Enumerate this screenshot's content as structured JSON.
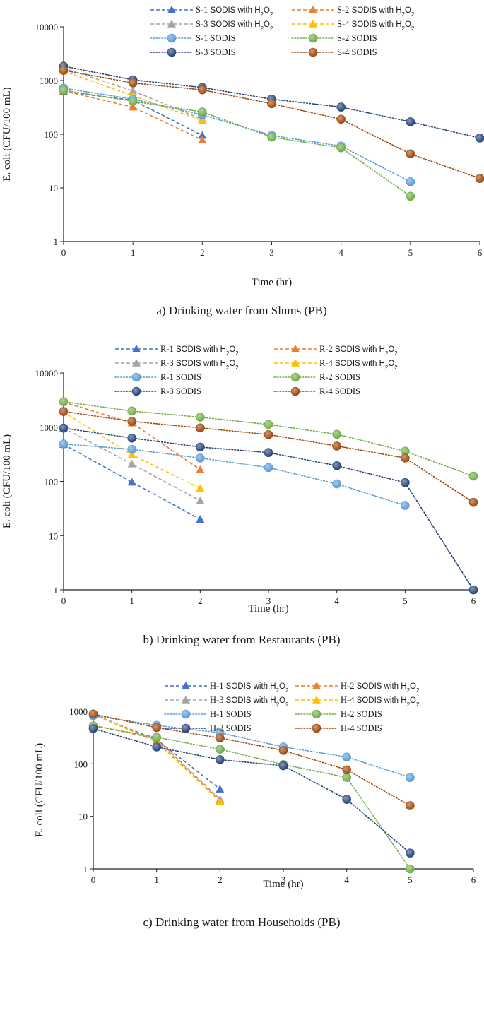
{
  "chart_data": [
    {
      "type": "line",
      "caption": "a) Drinking water from Slums (PB)",
      "xlabel": "Time (hr)",
      "ylabel": "E. coli  (CFU/100 mL)",
      "yscale": "log",
      "ylim": [
        1,
        10000
      ],
      "xlim": [
        0,
        6
      ],
      "x_ticks": [
        "0",
        "1",
        "2",
        "3",
        "4",
        "5",
        "6"
      ],
      "y_ticks": [
        "1",
        "10",
        "100",
        "1000",
        "10000"
      ],
      "legend_location": "top",
      "series": [
        {
          "code": "S-1",
          "suffix": " SODIS with H2O2",
          "marker": "triangle",
          "line": "dashed",
          "color": "#4472C4",
          "x": [
            0,
            1,
            2
          ],
          "y": [
            620,
            430,
            95
          ]
        },
        {
          "code": "S-2",
          "suffix": " SODIS with H2O2",
          "marker": "triangle",
          "line": "dashed",
          "color": "#ED7D31",
          "x": [
            0,
            1,
            2
          ],
          "y": [
            640,
            320,
            78
          ]
        },
        {
          "code": "S-3",
          "suffix": " SODIS with H2O2",
          "marker": "triangle",
          "line": "dashed",
          "color": "#A5A5A5",
          "x": [
            0,
            1,
            2
          ],
          "y": [
            1700,
            640,
            190
          ]
        },
        {
          "code": "S-4",
          "suffix": " SODIS with H2O2",
          "marker": "triangle",
          "line": "dashed",
          "color": "#FFC000",
          "x": [
            0,
            1,
            2
          ],
          "y": [
            1500,
            520,
            180
          ]
        },
        {
          "code": "S-1",
          "suffix": " SODIS",
          "marker": "circle",
          "line": "dotted",
          "color": "#5B9BD5",
          "x": [
            0,
            1,
            2,
            3,
            4,
            5
          ],
          "y": [
            720,
            450,
            230,
            95,
            60,
            13
          ]
        },
        {
          "code": "S-2",
          "suffix": " SODIS",
          "marker": "circle",
          "line": "dotted",
          "color": "#70AD47",
          "x": [
            0,
            1,
            2,
            3,
            4,
            5
          ],
          "y": [
            660,
            410,
            260,
            88,
            56,
            7
          ]
        },
        {
          "code": "S-3",
          "suffix": " SODIS",
          "marker": "circle",
          "line": "dotted",
          "color": "#264478",
          "x": [
            0,
            1,
            2,
            3,
            4,
            5,
            6
          ],
          "y": [
            1850,
            1030,
            740,
            450,
            320,
            170,
            85
          ]
        },
        {
          "code": "S-4",
          "suffix": " SODIS",
          "marker": "circle",
          "line": "dotted",
          "color": "#9E480E",
          "x": [
            0,
            1,
            2,
            3,
            4,
            5,
            6
          ],
          "y": [
            1550,
            900,
            670,
            370,
            190,
            43,
            15
          ]
        }
      ]
    },
    {
      "type": "line",
      "caption": "b) Drinking water from Restaurants (PB)",
      "xlabel": "Time (hr)",
      "ylabel": "E. coli  (CFU/100 mL)",
      "yscale": "log",
      "ylim": [
        1,
        10000
      ],
      "xlim": [
        0,
        6
      ],
      "x_ticks": [
        "0",
        "1",
        "2",
        "3",
        "4",
        "5",
        "6"
      ],
      "y_ticks": [
        "1",
        "10",
        "100",
        "1000",
        "10000"
      ],
      "legend_location": "top",
      "series": [
        {
          "code": "R-1",
          "suffix": " SODIS with H2O2",
          "marker": "triangle",
          "line": "dashed",
          "color": "#4472C4",
          "x": [
            0,
            1,
            2
          ],
          "y": [
            480,
            97,
            20
          ]
        },
        {
          "code": "R-2",
          "suffix": " SODIS with H2O2",
          "marker": "triangle",
          "line": "dashed",
          "color": "#ED7D31",
          "x": [
            0,
            1,
            2
          ],
          "y": [
            2900,
            1200,
            165
          ]
        },
        {
          "code": "R-3",
          "suffix": " SODIS with H2O2",
          "marker": "triangle",
          "line": "dashed",
          "color": "#A5A5A5",
          "x": [
            0,
            1,
            2
          ],
          "y": [
            960,
            210,
            44
          ]
        },
        {
          "code": "R-4",
          "suffix": " SODIS with H2O2",
          "marker": "triangle",
          "line": "dashed",
          "color": "#FFC000",
          "x": [
            0,
            1,
            2
          ],
          "y": [
            1900,
            310,
            75
          ]
        },
        {
          "code": "R-1",
          "suffix": " SODIS",
          "marker": "circle",
          "line": "dotted",
          "color": "#5B9BD5",
          "x": [
            0,
            1,
            2,
            3,
            4,
            5
          ],
          "y": [
            490,
            390,
            270,
            180,
            90,
            36
          ]
        },
        {
          "code": "R-2",
          "suffix": " SODIS",
          "marker": "circle",
          "line": "dotted",
          "color": "#70AD47",
          "x": [
            0,
            1,
            2,
            3,
            4,
            5,
            6
          ],
          "y": [
            2950,
            1980,
            1530,
            1120,
            740,
            360,
            125
          ]
        },
        {
          "code": "R-3",
          "suffix": " SODIS",
          "marker": "circle",
          "line": "dotted",
          "color": "#264478",
          "x": [
            0,
            1,
            2,
            3,
            4,
            5,
            6
          ],
          "y": [
            960,
            630,
            430,
            340,
            195,
            95,
            1
          ]
        },
        {
          "code": "R-4",
          "suffix": " SODIS",
          "marker": "circle",
          "line": "dotted",
          "color": "#9E480E",
          "x": [
            0,
            1,
            2,
            3,
            4,
            5,
            6
          ],
          "y": [
            1950,
            1280,
            970,
            730,
            450,
            270,
            41
          ]
        }
      ]
    },
    {
      "type": "line",
      "caption": "c) Drinking water from Households (PB)",
      "xlabel": "Time (hr)",
      "ylabel": "E. coli  (CFU/100 mL)",
      "yscale": "log",
      "ylim": [
        1,
        1000
      ],
      "xlim": [
        0,
        6
      ],
      "x_ticks": [
        "0",
        "1",
        "2",
        "3",
        "4",
        "5",
        "6"
      ],
      "y_ticks": [
        "1",
        "10",
        "100",
        "1000"
      ],
      "legend_location": "top",
      "series": [
        {
          "code": "H-1",
          "suffix": " SODIS with H2O2",
          "marker": "triangle",
          "line": "dashed",
          "color": "#4472C4",
          "x": [
            0,
            1,
            2
          ],
          "y": [
            870,
            290,
            33
          ]
        },
        {
          "code": "H-2",
          "suffix": " SODIS with H2O2",
          "marker": "triangle",
          "line": "dashed",
          "color": "#ED7D31",
          "x": [
            0,
            1,
            2
          ],
          "y": [
            540,
            300,
            21
          ]
        },
        {
          "code": "H-3",
          "suffix": " SODIS with H2O2",
          "marker": "triangle",
          "line": "dashed",
          "color": "#A5A5A5",
          "x": [
            0,
            1,
            2
          ],
          "y": [
            860,
            280,
            20
          ]
        },
        {
          "code": "H-4",
          "suffix": " SODIS with H2O2",
          "marker": "triangle",
          "line": "dashed",
          "color": "#FFC000",
          "x": [
            0,
            1,
            2
          ],
          "y": [
            880,
            260,
            19
          ]
        },
        {
          "code": "H-1",
          "suffix": " SODIS",
          "marker": "circle",
          "line": "dotted",
          "color": "#5B9BD5",
          "x": [
            0,
            1,
            2,
            3,
            4,
            5
          ],
          "y": [
            830,
            540,
            390,
            210,
            135,
            55
          ]
        },
        {
          "code": "H-2",
          "suffix": " SODIS",
          "marker": "circle",
          "line": "dotted",
          "color": "#70AD47",
          "x": [
            0,
            1,
            2,
            3,
            4,
            5
          ],
          "y": [
            530,
            320,
            190,
            97,
            55,
            1
          ]
        },
        {
          "code": "H-3",
          "suffix": " SODIS",
          "marker": "circle",
          "line": "dotted",
          "color": "#264478",
          "x": [
            0,
            1,
            2,
            3,
            4,
            5
          ],
          "y": [
            470,
            210,
            120,
            92,
            21,
            2
          ]
        },
        {
          "code": "H-4",
          "suffix": " SODIS",
          "marker": "circle",
          "line": "dotted",
          "color": "#9E480E",
          "x": [
            0,
            1,
            2,
            3,
            4,
            5
          ],
          "y": [
            890,
            490,
            310,
            180,
            77,
            16
          ]
        }
      ]
    }
  ]
}
